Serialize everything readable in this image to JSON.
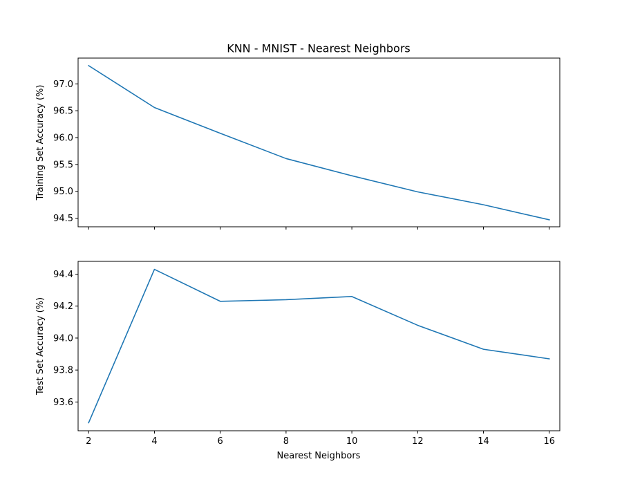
{
  "figure": {
    "title": "KNN - MNIST - Nearest Neighbors",
    "xlabel": "Nearest Neighbors"
  },
  "chart_data": [
    {
      "type": "line",
      "title": "KNN - MNIST - Nearest Neighbors",
      "xlabel": "",
      "ylabel": "Training Set Accuracy (%)",
      "x": [
        2,
        4,
        6,
        8,
        10,
        12,
        14,
        16
      ],
      "xlim": [
        1.68,
        16.32
      ],
      "ylim": [
        94.34,
        97.48
      ],
      "xticks": [
        2,
        4,
        6,
        8,
        10,
        12,
        14,
        16
      ],
      "yticks": [
        94.5,
        95.0,
        95.5,
        96.0,
        96.5,
        97.0
      ],
      "ytick_labels": [
        "94.5",
        "95.0",
        "95.5",
        "96.0",
        "96.5",
        "97.0"
      ],
      "show_xtick_labels": false,
      "grid": false,
      "series": [
        {
          "color": "#1f77b4",
          "values": [
            97.34,
            96.56,
            96.08,
            95.61,
            95.29,
            94.99,
            94.75,
            94.47
          ]
        }
      ]
    },
    {
      "type": "line",
      "title": "",
      "xlabel": "Nearest Neighbors",
      "ylabel": "Test Set Accuracy (%)",
      "x": [
        2,
        4,
        6,
        8,
        10,
        12,
        14,
        16
      ],
      "xlim": [
        1.68,
        16.32
      ],
      "ylim": [
        93.42,
        94.48
      ],
      "xticks": [
        2,
        4,
        6,
        8,
        10,
        12,
        14,
        16
      ],
      "xtick_labels": [
        "2",
        "4",
        "6",
        "8",
        "10",
        "12",
        "14",
        "16"
      ],
      "yticks": [
        93.6,
        93.8,
        94.0,
        94.2,
        94.4
      ],
      "ytick_labels": [
        "93.6",
        "93.8",
        "94.0",
        "94.2",
        "94.4"
      ],
      "show_xtick_labels": true,
      "grid": false,
      "series": [
        {
          "color": "#1f77b4",
          "values": [
            93.47,
            94.43,
            94.23,
            94.24,
            94.26,
            94.08,
            93.93,
            93.87
          ]
        }
      ]
    }
  ]
}
